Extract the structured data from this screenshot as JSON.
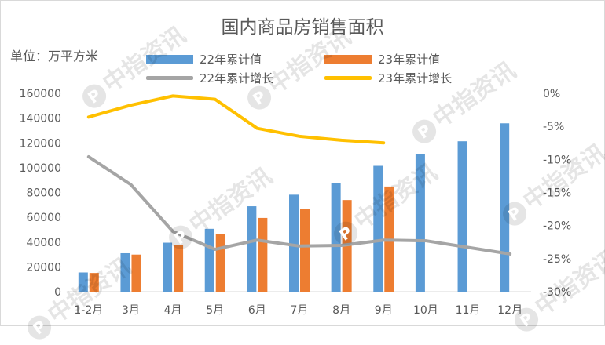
{
  "chart_data": {
    "type": "bar+line",
    "title": "国内商品房销售面积",
    "unit_label": "单位：万平方米",
    "categories": [
      "1-2月",
      "3月",
      "4月",
      "5月",
      "6月",
      "7月",
      "8月",
      "9月",
      "10月",
      "11月",
      "12月"
    ],
    "bar_series": [
      {
        "name": "22年累计值",
        "color": "#5b9bd5",
        "values": [
          15500,
          31000,
          39500,
          50700,
          68900,
          78200,
          87900,
          101500,
          111200,
          121300,
          135800
        ]
      },
      {
        "name": "23年累计值",
        "color": "#ed7d31",
        "values": [
          15100,
          29900,
          37600,
          46400,
          59500,
          66600,
          73900,
          84800,
          null,
          null,
          null
        ]
      }
    ],
    "line_series": [
      {
        "name": "22年累计增长",
        "color": "#a5a5a5",
        "values": [
          -9.6,
          -13.8,
          -20.9,
          -23.6,
          -22.2,
          -23.1,
          -23.0,
          -22.2,
          -22.3,
          -23.3,
          -24.3
        ]
      },
      {
        "name": "23年累计增长",
        "color": "#ffc000",
        "values": [
          -3.6,
          -1.8,
          -0.4,
          -0.9,
          -5.3,
          -6.5,
          -7.1,
          -7.5,
          null,
          null,
          null
        ]
      }
    ],
    "y_left": {
      "min": 0,
      "max": 160000,
      "step": 20000,
      "ticks": [
        "0",
        "20000",
        "40000",
        "60000",
        "80000",
        "100000",
        "120000",
        "140000",
        "160000"
      ]
    },
    "y_right": {
      "min": -30,
      "max": 0,
      "step": 5,
      "ticks": [
        "-30%",
        "-25%",
        "-20%",
        "-15%",
        "-10%",
        "-5%",
        "0%"
      ]
    },
    "grid": false,
    "legend_position": "top"
  },
  "watermark": {
    "text": "中指资讯",
    "logo_glyph": "P"
  }
}
